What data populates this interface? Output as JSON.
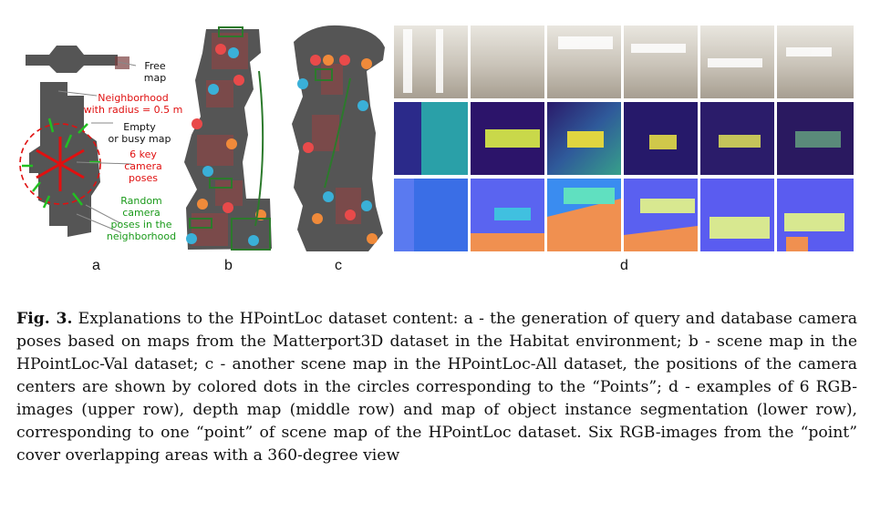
{
  "figure": {
    "panel_a": {
      "labels": [
        {
          "id": "free-map",
          "text": "Free\nmap",
          "color": "#111111"
        },
        {
          "id": "neighborhood",
          "text": "Neighborhood\nwith radius = 0.5 m",
          "color": "#e01010"
        },
        {
          "id": "empty-busy",
          "text": "Empty\nor busy map",
          "color": "#111111"
        },
        {
          "id": "key-poses",
          "text": "6 key\ncamera\nposes",
          "color": "#e01010"
        },
        {
          "id": "random-poses",
          "text": "Random\ncamera\nposes in the\nneighborhood",
          "color": "#1a9a1a"
        }
      ]
    },
    "sublabels": {
      "a": "a",
      "b": "b",
      "c": "c",
      "d": "d"
    }
  },
  "caption": {
    "label": "Fig. 3.",
    "text": "Explanations to the HPointLoc dataset content: a - the generation of query and database camera poses based on maps from the Matterport3D dataset in the Habitat environment; b - scene map in the HPointLoc-Val dataset; c - another scene map in the HPointLoc-All dataset, the positions of the camera centers are shown by colored dots in the circles corresponding to the “Points”; d - examples of 6 RGB-images (upper row), depth map (middle row) and map of object instance segmentation (lower row), corresponding to one “point” of scene map of the HPointLoc dataset. Six RGB-images from the “point” cover overlapping areas with a 360-degree view"
  }
}
